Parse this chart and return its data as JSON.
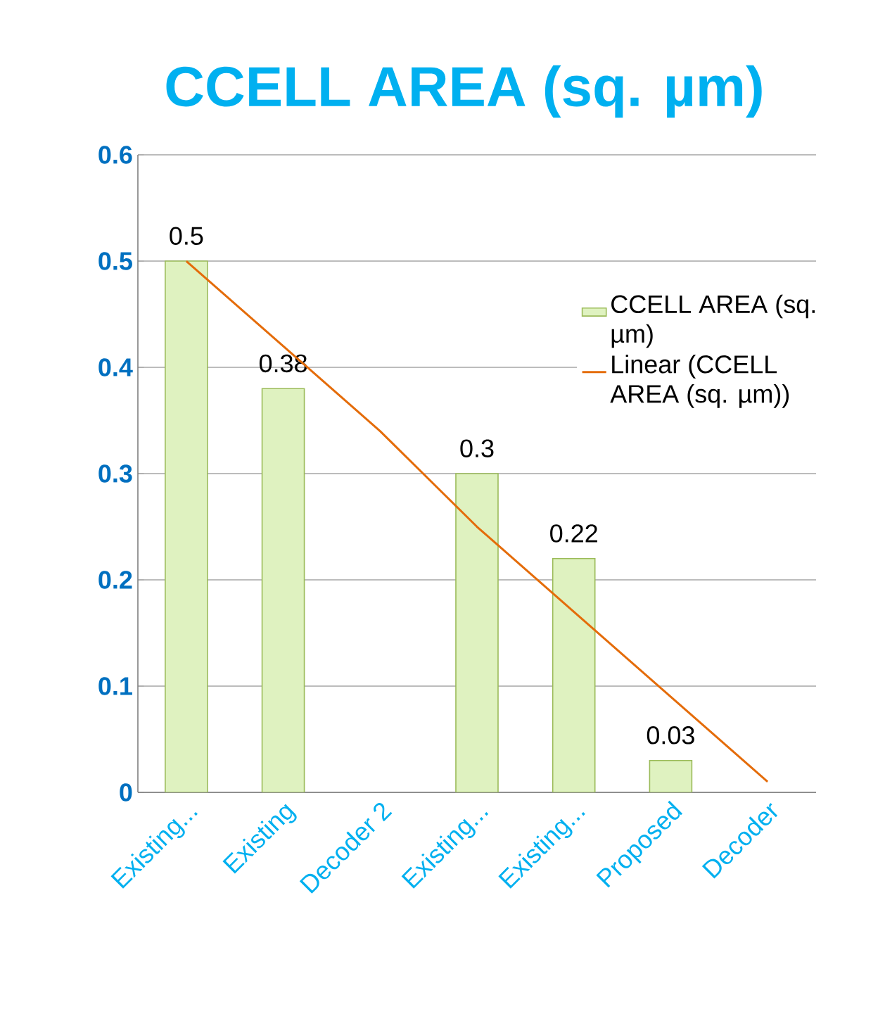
{
  "chart_data": {
    "type": "bar",
    "title": "CCELL AREA (sq. µm)",
    "categories": [
      "Existing...",
      "Existing",
      "Decoder 2",
      "Existing...",
      "Existing...",
      "Proposed",
      "Decoder"
    ],
    "series": [
      {
        "name": "CCELL AREA (sq. µm)",
        "color": "#dff2c0",
        "values": [
          0.5,
          0.38,
          null,
          0.3,
          0.22,
          0.03,
          null
        ],
        "value_labels": [
          "0.5",
          "0.38",
          null,
          "0.3",
          "0.22",
          "0.03",
          null
        ]
      },
      {
        "name": "Linear (CCELL AREA (sq. µm))",
        "type": "line",
        "color": "#e46c0a",
        "values": [
          0.5,
          0.42,
          0.34,
          0.25,
          0.17,
          0.09,
          0.01
        ]
      }
    ],
    "ylim": [
      0,
      0.6
    ],
    "yticks": [
      0,
      0.1,
      0.2,
      0.3,
      0.4,
      0.5,
      0.6
    ],
    "grid": "y",
    "legend": "right"
  }
}
